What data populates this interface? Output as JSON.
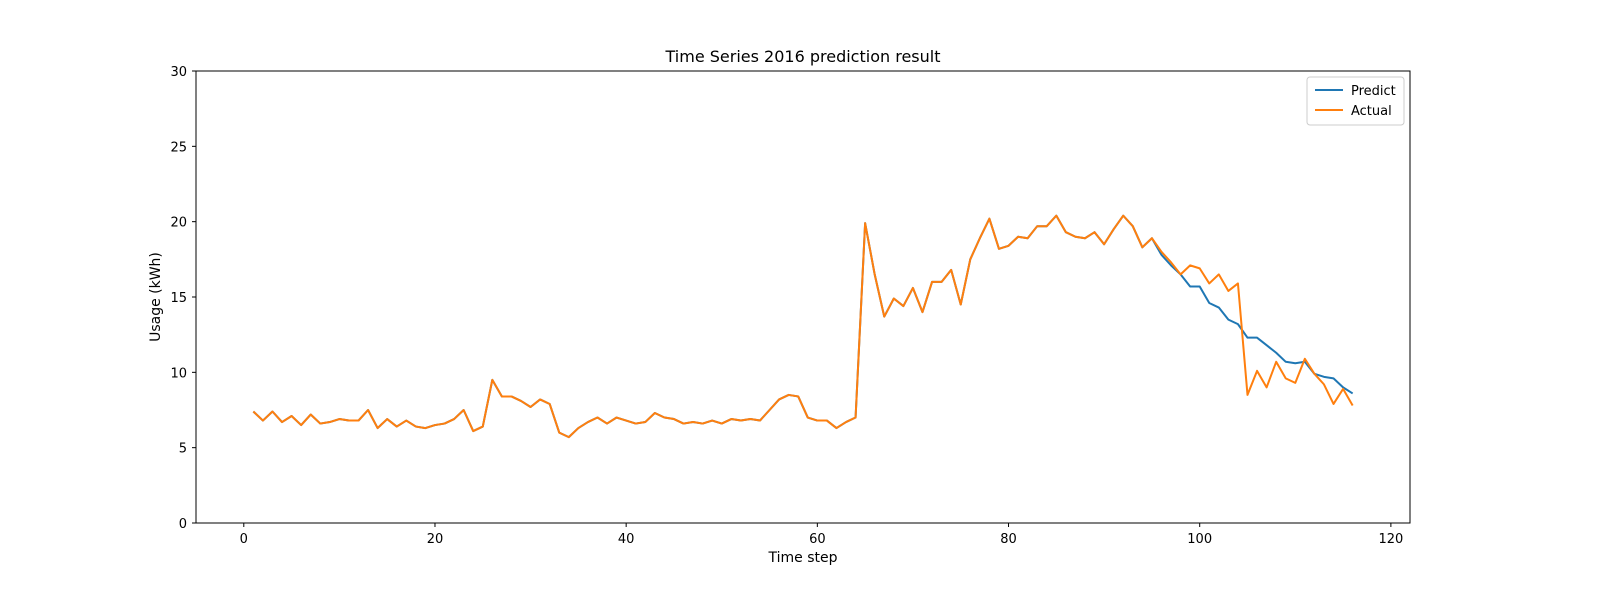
{
  "chart_data": {
    "type": "line",
    "title": "Time Series 2016 prediction result",
    "xlabel": "Time step",
    "ylabel": "Usage (kWh)",
    "xlim": [
      -5,
      122
    ],
    "ylim": [
      0,
      30
    ],
    "xticks": [
      0,
      20,
      40,
      60,
      80,
      100,
      120
    ],
    "yticks": [
      0,
      5,
      10,
      15,
      20,
      25,
      30
    ],
    "grid": false,
    "legend_position": "top-right",
    "x": [
      1,
      2,
      3,
      4,
      5,
      6,
      7,
      8,
      9,
      10,
      11,
      12,
      13,
      14,
      15,
      16,
      17,
      18,
      19,
      20,
      21,
      22,
      23,
      24,
      25,
      26,
      27,
      28,
      29,
      30,
      31,
      32,
      33,
      34,
      35,
      36,
      37,
      38,
      39,
      40,
      41,
      42,
      43,
      44,
      45,
      46,
      47,
      48,
      49,
      50,
      51,
      52,
      53,
      54,
      55,
      56,
      57,
      58,
      59,
      60,
      61,
      62,
      63,
      64,
      65,
      66,
      67,
      68,
      69,
      70,
      71,
      72,
      73,
      74,
      75,
      76,
      77,
      78,
      79,
      80,
      81,
      82,
      83,
      84,
      85,
      86,
      87,
      88,
      89,
      90,
      91,
      92,
      93,
      94,
      95,
      96,
      97,
      98,
      99,
      100,
      101,
      102,
      103,
      104,
      105,
      106,
      107,
      108,
      109,
      110,
      111,
      112,
      113,
      114,
      115,
      116
    ],
    "series": [
      {
        "name": "Predict",
        "color": "#1f77b4",
        "values": [
          7.4,
          6.8,
          7.4,
          6.7,
          7.1,
          6.5,
          7.2,
          6.6,
          6.7,
          6.9,
          6.8,
          6.8,
          7.5,
          6.3,
          6.9,
          6.4,
          6.8,
          6.4,
          6.3,
          6.5,
          6.6,
          6.9,
          7.5,
          6.1,
          6.4,
          9.5,
          8.4,
          8.4,
          8.1,
          7.7,
          8.2,
          7.9,
          6.0,
          5.7,
          6.3,
          6.7,
          7.0,
          6.6,
          7.0,
          6.8,
          6.6,
          6.7,
          7.3,
          7.0,
          6.9,
          6.6,
          6.7,
          6.6,
          6.8,
          6.6,
          6.9,
          6.8,
          6.9,
          6.8,
          7.5,
          8.2,
          8.5,
          8.4,
          7.0,
          6.8,
          6.8,
          6.3,
          6.7,
          7.0,
          19.9,
          16.5,
          13.7,
          14.9,
          14.4,
          15.6,
          14.0,
          16.0,
          16.0,
          16.8,
          14.5,
          17.5,
          18.9,
          20.2,
          18.2,
          18.4,
          19.0,
          18.9,
          19.7,
          19.7,
          20.4,
          19.3,
          19.0,
          18.9,
          19.3,
          18.5,
          19.5,
          20.4,
          19.7,
          18.3,
          18.9,
          17.8,
          17.1,
          16.5,
          15.7,
          15.7,
          14.6,
          14.3,
          13.5,
          13.2,
          12.3,
          12.3,
          11.8,
          11.3,
          10.7,
          10.6,
          10.7,
          9.9,
          9.7,
          9.6,
          9.0,
          8.6
        ]
      },
      {
        "name": "Actual",
        "color": "#ff7f0e",
        "values": [
          7.4,
          6.8,
          7.4,
          6.7,
          7.1,
          6.5,
          7.2,
          6.6,
          6.7,
          6.9,
          6.8,
          6.8,
          7.5,
          6.3,
          6.9,
          6.4,
          6.8,
          6.4,
          6.3,
          6.5,
          6.6,
          6.9,
          7.5,
          6.1,
          6.4,
          9.5,
          8.4,
          8.4,
          8.1,
          7.7,
          8.2,
          7.9,
          6.0,
          5.7,
          6.3,
          6.7,
          7.0,
          6.6,
          7.0,
          6.8,
          6.6,
          6.7,
          7.3,
          7.0,
          6.9,
          6.6,
          6.7,
          6.6,
          6.8,
          6.6,
          6.9,
          6.8,
          6.9,
          6.8,
          7.5,
          8.2,
          8.5,
          8.4,
          7.0,
          6.8,
          6.8,
          6.3,
          6.7,
          7.0,
          19.9,
          16.5,
          13.7,
          14.9,
          14.4,
          15.6,
          14.0,
          16.0,
          16.0,
          16.8,
          14.5,
          17.5,
          18.9,
          20.2,
          18.2,
          18.4,
          19.0,
          18.9,
          19.7,
          19.7,
          20.4,
          19.3,
          19.0,
          18.9,
          19.3,
          18.5,
          19.5,
          20.4,
          19.7,
          18.3,
          18.9,
          18.0,
          17.3,
          16.5,
          17.1,
          16.9,
          15.9,
          16.5,
          15.4,
          15.9,
          8.5,
          10.1,
          9.0,
          10.7,
          9.6,
          9.3,
          10.9,
          9.9,
          9.2,
          7.9,
          8.9,
          7.8
        ]
      }
    ]
  }
}
